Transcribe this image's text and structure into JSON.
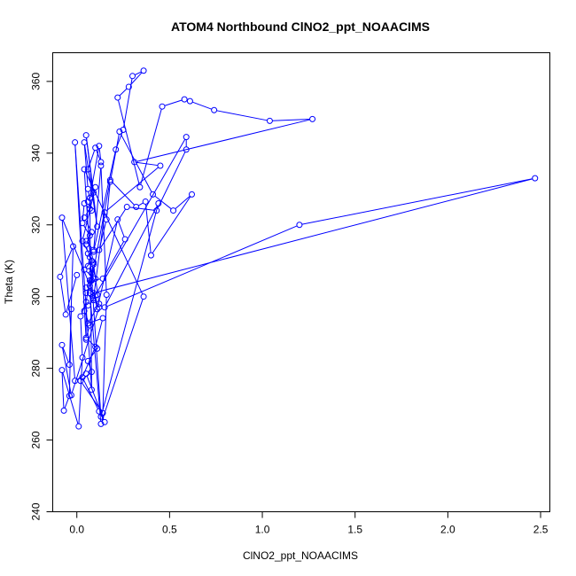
{
  "chart_data": {
    "type": "line",
    "title": "ATOM4 Northbound ClNO2_ppt_NOAACIMS",
    "xlabel": "ClNO2_ppt_NOAACIMS",
    "ylabel": "Theta (K)",
    "xlim": [
      -0.13,
      2.55
    ],
    "ylim": [
      240,
      368
    ],
    "xticks": [
      0.0,
      0.5,
      1.0,
      1.5,
      2.0,
      2.5
    ],
    "xtick_labels": [
      "0.0",
      "0.5",
      "1.0",
      "1.5",
      "2.0",
      "2.5"
    ],
    "yticks": [
      240,
      260,
      280,
      300,
      320,
      340,
      360
    ],
    "ytick_labels": [
      "240",
      "260",
      "280",
      "300",
      "320",
      "340",
      "360"
    ],
    "grid": false,
    "series_color": "#0000ff",
    "markers": "open-circle",
    "x": [
      -0.03,
      -0.04,
      -0.07,
      -0.08,
      0.01,
      0.03,
      0.02,
      0.05,
      0.05,
      -0.01,
      0.08,
      0.07,
      0.12,
      0.13,
      0.1,
      0.06,
      0.09,
      0.05,
      0.11,
      0.04,
      0.06,
      0.08,
      0.04,
      0.03,
      0.07,
      0.05,
      0.06,
      0.08,
      0.04,
      0.1,
      0.07,
      0.05,
      0.09,
      0.06,
      0.11,
      0.05,
      0.07,
      0.08,
      0.06,
      0.07,
      0.09,
      0.05,
      0.08,
      0.04,
      0.07,
      0.06,
      0.1,
      0.03,
      0.09,
      0.04,
      0.07,
      0.05,
      0.11,
      0.06,
      0.08,
      0.02,
      0.14,
      0.16,
      0.13,
      0.09,
      0.21,
      0.25,
      0.3,
      0.36,
      0.28,
      0.22,
      0.34,
      0.46,
      0.58,
      0.61,
      0.74,
      1.04,
      1.27,
      0.31,
      0.45,
      0.15,
      0.09,
      0.59,
      0.59,
      0.43,
      0.27,
      0.12,
      0.16,
      0.18,
      0.23,
      0.41,
      0.52,
      0.62,
      0.4,
      0.37,
      0.32,
      0.18,
      0.08,
      0.14,
      0.26,
      0.22,
      0.11,
      0.09,
      2.47,
      1.2,
      0.15,
      0.44,
      0.13,
      0.04,
      0.36,
      0.13,
      0.07,
      0.09,
      0.12,
      0.06,
      0.14,
      0.1,
      0.03,
      0.12,
      0.15,
      0.05,
      -0.01,
      -0.08,
      0.12,
      -0.03,
      -0.08,
      -0.04,
      -0.02,
      -0.09,
      -0.06,
      0.0
    ],
    "y": [
      296.5,
      272.3,
      268.2,
      279.5,
      263.8,
      283.0,
      294.5,
      298.5,
      288.0,
      343.0,
      274.0,
      327.5,
      342.0,
      337.5,
      341.5,
      335.5,
      329.0,
      345.0,
      319.5,
      343.0,
      330.0,
      324.0,
      326.0,
      320.5,
      317.0,
      314.5,
      312.0,
      310.0,
      307.5,
      305.0,
      303.0,
      301.0,
      299.0,
      297.5,
      300.5,
      302.5,
      304.5,
      306.5,
      308.5,
      311.0,
      313.0,
      315.5,
      318.0,
      322.0,
      324.5,
      326.5,
      330.5,
      315.5,
      309.5,
      296.0,
      292.0,
      288.5,
      285.5,
      282.0,
      279.0,
      276.5,
      267.5,
      300.5,
      336.5,
      312.5,
      341.0,
      346.5,
      361.5,
      363.0,
      358.5,
      355.5,
      330.5,
      353.0,
      355.0,
      354.5,
      352.0,
      349.0,
      349.5,
      337.5,
      336.5,
      323.5,
      299.5,
      344.5,
      341.0,
      324.0,
      325.0,
      313.0,
      321.5,
      332.0,
      346.0,
      328.5,
      324.0,
      328.5,
      311.5,
      326.5,
      325.0,
      332.5,
      304.5,
      305.0,
      316.0,
      321.5,
      296.5,
      301.0,
      333.0,
      320.0,
      297.0,
      326.0,
      266.5,
      335.5,
      300.0,
      264.5,
      301.0,
      309.0,
      298.0,
      292.5,
      294.0,
      286.0,
      277.5,
      268.0,
      265.0,
      278.5,
      276.5,
      322.0,
      297.0,
      272.5,
      286.5,
      281.0,
      314.0,
      305.5,
      295.0,
      306.0
    ]
  }
}
